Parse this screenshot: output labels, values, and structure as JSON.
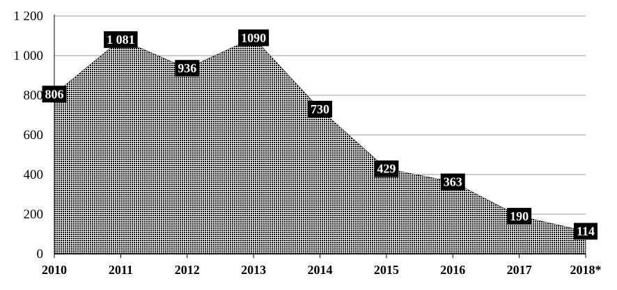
{
  "chart_data": {
    "type": "area",
    "title": "",
    "xlabel": "",
    "ylabel": "",
    "categories": [
      "2010",
      "2011",
      "2012",
      "2013",
      "2014",
      "2015",
      "2016",
      "2017",
      "2018*"
    ],
    "series": [
      {
        "values": [
          806,
          1081,
          936,
          1090,
          730,
          429,
          363,
          190,
          114
        ],
        "fill_pattern": "dotted-black",
        "color": "#000000"
      }
    ],
    "data_labels": [
      "806",
      "1 081",
      "936",
      "1090",
      "730",
      "429",
      "363",
      "190",
      "114"
    ],
    "y_tick_labels": [
      "0",
      "200",
      "400",
      "600",
      "800",
      "1 000",
      "1 200"
    ],
    "y_tick_values": [
      0,
      200,
      400,
      600,
      800,
      1000,
      1200
    ],
    "ylim": [
      0,
      1200
    ],
    "grid": true,
    "legend": "none",
    "label_box_color": "#000000",
    "label_text_color": "#ffffff",
    "gridline_color": "#9a9a9a"
  }
}
